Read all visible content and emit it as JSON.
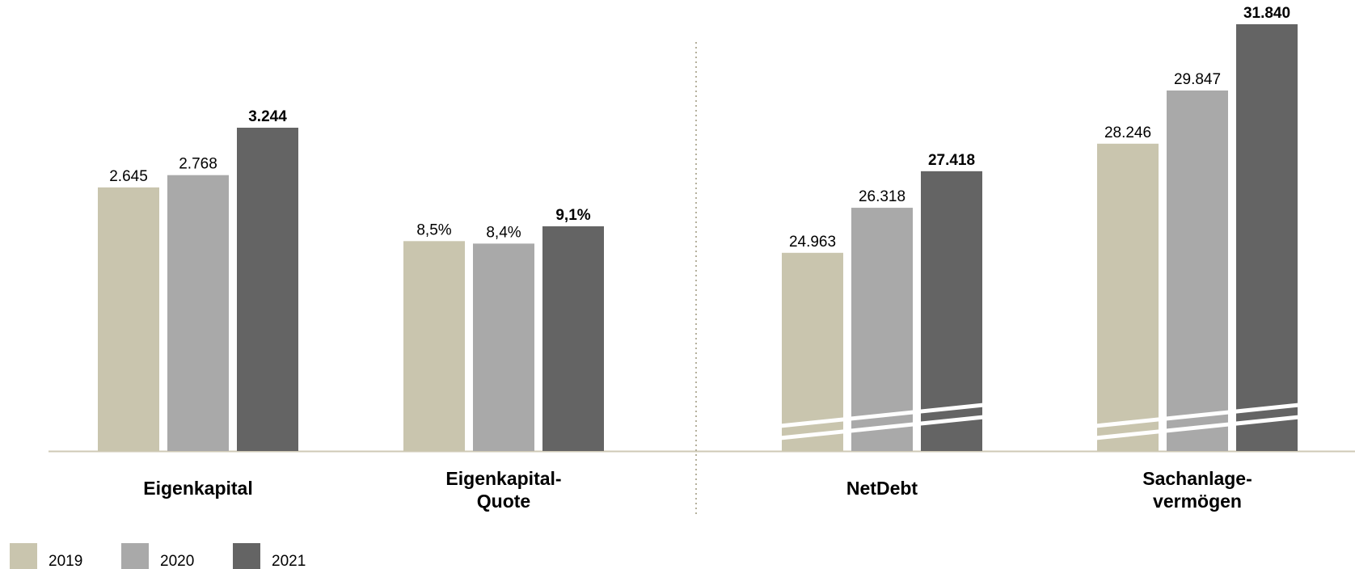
{
  "chart_data": {
    "type": "bar",
    "series": [
      {
        "name": "2019",
        "color": "#c9c5ae"
      },
      {
        "name": "2020",
        "color": "#a9a9a9"
      },
      {
        "name": "2021",
        "color": "#646464"
      }
    ],
    "groups": [
      {
        "label_lines": [
          "Eigenkapital"
        ],
        "values": [
          2645,
          2768,
          3244
        ],
        "value_labels": [
          "2.645",
          "2.768",
          "3.244"
        ],
        "axis_break": false,
        "panel": "left"
      },
      {
        "label_lines": [
          "Eigenkapital-",
          "Quote"
        ],
        "values": [
          8.5,
          8.4,
          9.1
        ],
        "value_labels": [
          "8,5%",
          "8,4%",
          "9,1%"
        ],
        "axis_break": false,
        "panel": "left"
      },
      {
        "label_lines": [
          "NetDebt"
        ],
        "values": [
          24963,
          26318,
          27418
        ],
        "value_labels": [
          "24.963",
          "26.318",
          "27.418"
        ],
        "axis_break": true,
        "panel": "right"
      },
      {
        "label_lines": [
          "Sachanlage-",
          "vermögen"
        ],
        "values": [
          28246,
          29847,
          31840
        ],
        "value_labels": [
          "28.246",
          "29.847",
          "31.840"
        ],
        "axis_break": true,
        "panel": "right"
      }
    ],
    "highlight_series": "2021",
    "baseline_color": "#cfcab6",
    "divider": "dotted vertical line between left and right panels",
    "legend_position": "bottom-left",
    "grid": false
  }
}
